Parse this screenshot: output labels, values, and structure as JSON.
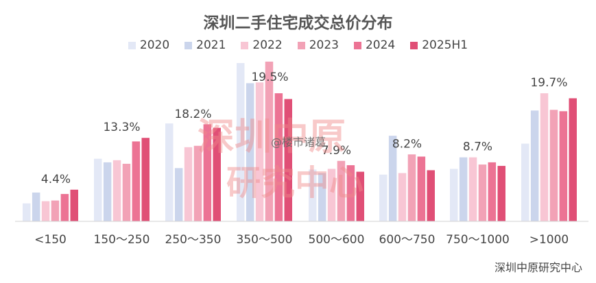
{
  "chart_data": {
    "type": "bar",
    "title": "深圳二手住宅成交总价分布",
    "xlabel": "",
    "ylabel": "",
    "ylim": [
      0,
      22
    ],
    "grid": false,
    "legend_position": "top-center",
    "categories": [
      "<150",
      "150～250",
      "250～350",
      "350～500",
      "500～600",
      "600～750",
      "750～1000",
      ">1000"
    ],
    "series": [
      {
        "name": "2020",
        "color": "#e3e8f6",
        "values": [
          2.5,
          8.7,
          13.6,
          22.0,
          7.2,
          6.5,
          7.3,
          10.8
        ]
      },
      {
        "name": "2021",
        "color": "#cbd5ec",
        "values": [
          4.0,
          8.2,
          7.4,
          19.2,
          6.7,
          11.9,
          8.9,
          15.4
        ]
      },
      {
        "name": "2022",
        "color": "#f8c6d4",
        "values": [
          2.8,
          8.5,
          10.3,
          19.3,
          7.3,
          6.7,
          8.9,
          17.8
        ]
      },
      {
        "name": "2023",
        "color": "#f2a2b6",
        "values": [
          2.9,
          8.0,
          10.5,
          22.2,
          8.4,
          9.3,
          7.9,
          15.5
        ]
      },
      {
        "name": "2024",
        "color": "#ec7394",
        "values": [
          3.8,
          11.1,
          13.5,
          17.8,
          7.8,
          9.0,
          8.2,
          15.3
        ]
      },
      {
        "name": "2025H1",
        "color": "#e04f76",
        "values": [
          4.4,
          11.6,
          13.0,
          17.0,
          6.9,
          7.1,
          7.7,
          17.1
        ]
      }
    ],
    "data_labels": [
      "4.4%",
      "13.3%",
      "18.2%",
      "19.5%",
      "7.9%",
      "8.2%",
      "8.7%",
      "19.7%"
    ]
  },
  "source": "深圳中原研究中心",
  "watermark": {
    "handle": "@楼市诸葛",
    "brand_line1": "深圳中原",
    "brand_line2": "研究中心"
  }
}
